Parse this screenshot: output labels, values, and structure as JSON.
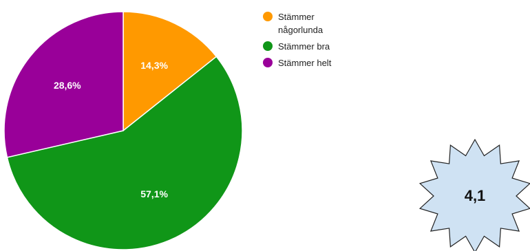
{
  "chart_data": {
    "type": "pie",
    "title": "",
    "categories": [
      "Stämmer någorlunda",
      "Stämmer bra",
      "Stämmer helt"
    ],
    "values": [
      14.3,
      57.1,
      28.6
    ],
    "value_labels": [
      "14,3%",
      "57,1%",
      "28,6%"
    ],
    "colors": [
      "#ff9900",
      "#109618",
      "#990099"
    ],
    "legend_position": "top-right",
    "legend": [
      {
        "lines": [
          "Stämmer",
          "någorlunda"
        ],
        "color": "#ff9900"
      },
      {
        "lines": [
          "Stämmer bra"
        ],
        "color": "#109618"
      },
      {
        "lines": [
          "Stämmer helt"
        ],
        "color": "#990099"
      }
    ]
  },
  "badge": {
    "value": "4,1",
    "shape": "starburst",
    "fill": "#cfe2f3",
    "stroke": "#222222"
  }
}
